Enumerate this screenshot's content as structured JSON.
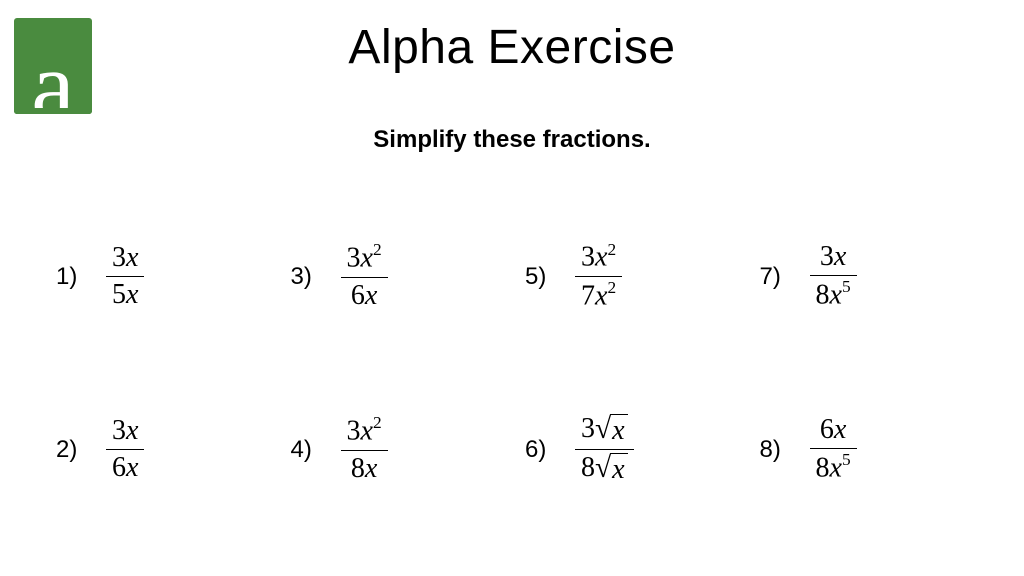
{
  "logo": {
    "glyph": "a",
    "bg_color": "#4a8b3f",
    "fg_color": "#ffffff"
  },
  "title": "Alpha Exercise",
  "subtitle": "Simplify these fractions.",
  "title_fontsize": 48,
  "subtitle_fontsize": 24,
  "problem_fontsize": 28,
  "text_color": "#000000",
  "background_color": "#ffffff",
  "layout": {
    "rows": 2,
    "cols": 4,
    "order": "column-major"
  },
  "problems": [
    {
      "label": "1)",
      "numerator_html": "<span class='n'>3</span>x",
      "denominator_html": "<span class='n'>5</span>x"
    },
    {
      "label": "2)",
      "numerator_html": "<span class='n'>3</span>x",
      "denominator_html": "<span class='n'>6</span>x"
    },
    {
      "label": "3)",
      "numerator_html": "<span class='n'>3</span>x<sup>2</sup>",
      "denominator_html": "<span class='n'>6</span>x"
    },
    {
      "label": "4)",
      "numerator_html": "<span class='n'>3</span>x<sup>2</sup>",
      "denominator_html": "<span class='n'>8</span>x"
    },
    {
      "label": "5)",
      "numerator_html": "<span class='n'>3</span>x<sup>2</sup>",
      "denominator_html": "<span class='n'>7</span>x<sup>2</sup>"
    },
    {
      "label": "6)",
      "numerator_html": "<span class='n'>3</span><span class='sqrt'><span class='rad'>√</span><span class='radicand'>x</span></span>",
      "denominator_html": "<span class='n'>8</span><span class='sqrt'><span class='rad'>√</span><span class='radicand'>x</span></span>"
    },
    {
      "label": "7)",
      "numerator_html": "<span class='n'>3</span>x",
      "denominator_html": "<span class='n'>8</span>x<sup>5</sup>"
    },
    {
      "label": "8)",
      "numerator_html": "<span class='n'>6</span>x",
      "denominator_html": "<span class='n'>8</span>x<sup>5</sup>"
    }
  ]
}
